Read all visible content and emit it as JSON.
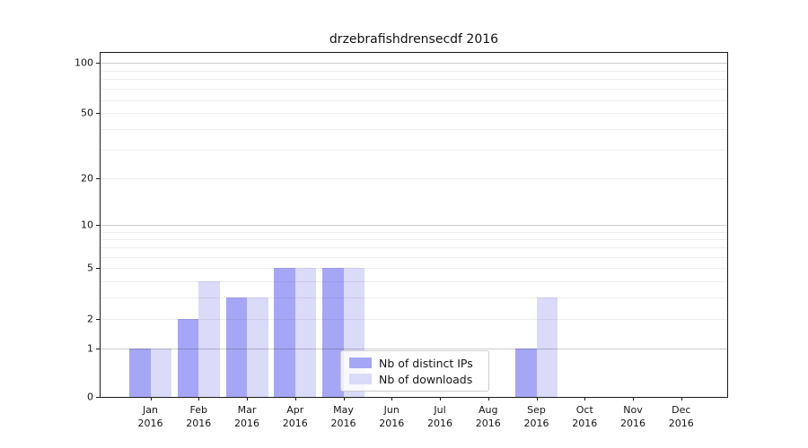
{
  "chart_data": {
    "type": "bar",
    "title": "drzebrafishdrensecdf 2016",
    "categories": [
      "Jan 2016",
      "Feb 2016",
      "Mar 2016",
      "Apr 2016",
      "May 2016",
      "Jun 2016",
      "Jul 2016",
      "Aug 2016",
      "Sep 2016",
      "Oct 2016",
      "Nov 2016",
      "Dec 2016"
    ],
    "series": [
      {
        "name": "Nb of distinct IPs",
        "color": "#a6a6f6",
        "values": [
          1,
          2,
          3,
          5,
          5,
          0,
          0,
          0,
          1,
          0,
          0,
          0
        ]
      },
      {
        "name": "Nb of downloads",
        "color": "#dadaf9",
        "values": [
          1,
          4,
          3,
          5,
          5,
          0,
          0,
          0,
          3,
          0,
          0,
          0
        ]
      }
    ],
    "yscale": "log-like",
    "ylim": [
      0,
      100
    ],
    "yticks": [
      100,
      50,
      20,
      10,
      5,
      2,
      1,
      0
    ],
    "grid": "on",
    "legend_position": "lower-center"
  },
  "axes": {
    "y_tick_labels": [
      "100",
      "50",
      "20",
      "10",
      "5",
      "2",
      "1",
      "0"
    ],
    "x_tick_line2": "2016"
  },
  "legend": {
    "items": [
      {
        "label": "Nb of distinct IPs",
        "color": "#a6a6f6"
      },
      {
        "label": "Nb of downloads",
        "color": "#dadaf9"
      }
    ]
  }
}
